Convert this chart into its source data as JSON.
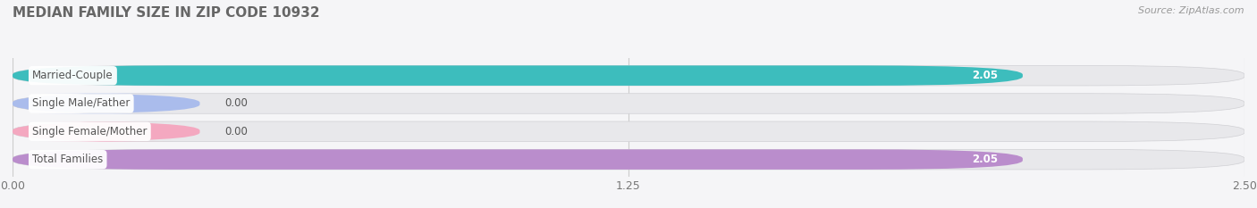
{
  "title": "MEDIAN FAMILY SIZE IN ZIP CODE 10932",
  "source": "Source: ZipAtlas.com",
  "categories": [
    "Married-Couple",
    "Single Male/Father",
    "Single Female/Mother",
    "Total Families"
  ],
  "values": [
    2.05,
    0.0,
    0.0,
    2.05
  ],
  "display_values": [
    "2.05",
    "0.00",
    "0.00",
    "2.05"
  ],
  "bar_colors": [
    "#3dbdbd",
    "#aabcec",
    "#f4a8c0",
    "#ba8dcc"
  ],
  "bar_bg_color": "#e8e8eb",
  "label_bg_color": "#ffffff",
  "xlim": [
    0.0,
    2.5
  ],
  "xticks": [
    0.0,
    1.25,
    2.5
  ],
  "xtick_labels": [
    "0.00",
    "1.25",
    "2.50"
  ],
  "title_color": "#666666",
  "label_color": "#555555",
  "value_label_color": "#ffffff",
  "source_color": "#999999",
  "bar_height": 0.72,
  "small_bar_width": 0.38,
  "title_fontsize": 11,
  "label_fontsize": 8.5,
  "value_fontsize": 8.5,
  "tick_fontsize": 9,
  "bg_color": "#f5f5f7"
}
